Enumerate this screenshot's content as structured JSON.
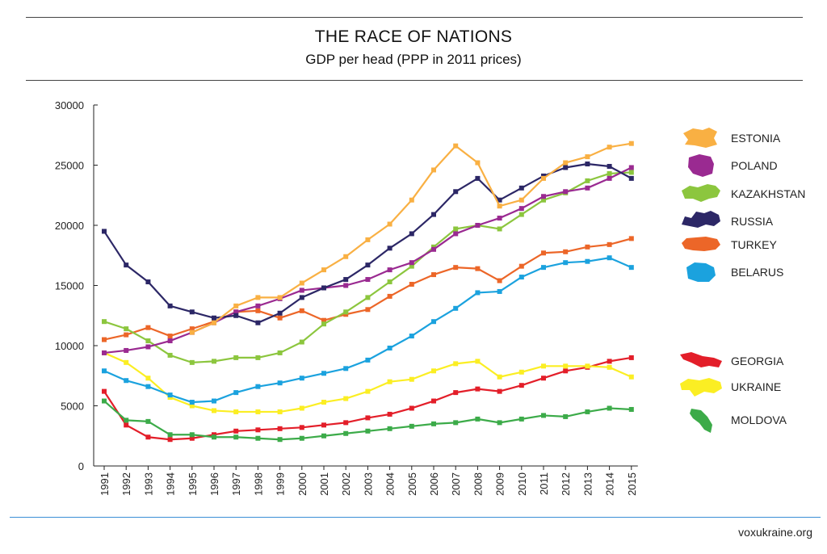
{
  "header": {
    "title": "THE RACE OF NATIONS",
    "subtitle": "GDP per head (PPP in 2011 prices)"
  },
  "footer": {
    "source": "voxukraine.org"
  },
  "chart_data": {
    "type": "line",
    "title": "THE RACE OF NATIONS",
    "subtitle": "GDP per head (PPP in 2011 prices)",
    "xlabel": "",
    "ylabel": "",
    "ylim": [
      0,
      30000
    ],
    "yticks": [
      "0",
      "5000",
      "10000",
      "15000",
      "20000",
      "25000",
      "30000"
    ],
    "grid": false,
    "legend_position": "right",
    "x": [
      "1991",
      "1992",
      "1993",
      "1994",
      "1995",
      "1996",
      "1997",
      "1998",
      "1999",
      "2000",
      "2001",
      "2002",
      "2003",
      "2004",
      "2005",
      "2006",
      "2007",
      "2008",
      "2009",
      "2010",
      "2011",
      "2012",
      "2013",
      "2014",
      "2015"
    ],
    "series": [
      {
        "name": "ESTONIA",
        "color": "#f9b043",
        "values": [
          null,
          null,
          null,
          null,
          11100,
          11900,
          13300,
          14000,
          14000,
          15200,
          16300,
          17400,
          18800,
          20100,
          22100,
          24600,
          26600,
          25200,
          21600,
          22100,
          23900,
          25200,
          25700,
          26500,
          26800
        ]
      },
      {
        "name": "POLAND",
        "color": "#9a2a91",
        "values": [
          9400,
          9600,
          9900,
          10400,
          11100,
          11900,
          12800,
          13300,
          13900,
          14600,
          14800,
          15000,
          15500,
          16300,
          16900,
          18000,
          19300,
          20000,
          20600,
          21400,
          22400,
          22800,
          23100,
          23900,
          24800
        ]
      },
      {
        "name": "KAZAKHSTAN",
        "color": "#8cc63e",
        "values": [
          12000,
          11400,
          10400,
          9200,
          8600,
          8700,
          9000,
          9000,
          9400,
          10300,
          11800,
          12800,
          14000,
          15300,
          16600,
          18200,
          19700,
          20000,
          19700,
          20900,
          22100,
          22700,
          23700,
          24300,
          24400
        ]
      },
      {
        "name": "RUSSIA",
        "color": "#2c2766",
        "values": [
          19500,
          16700,
          15300,
          13300,
          12800,
          12300,
          12500,
          11900,
          12700,
          14000,
          14800,
          15500,
          16700,
          18100,
          19300,
          20900,
          22800,
          23900,
          22100,
          23100,
          24100,
          24800,
          25100,
          24900,
          23900
        ]
      },
      {
        "name": "TURKEY",
        "color": "#ec6628",
        "values": [
          10500,
          10900,
          11500,
          10800,
          11400,
          12000,
          12800,
          12900,
          12300,
          12900,
          12100,
          12600,
          13000,
          14100,
          15100,
          15900,
          16500,
          16400,
          15400,
          16600,
          17700,
          17800,
          18200,
          18400,
          18900
        ]
      },
      {
        "name": "BELARUS",
        "color": "#1ba2de",
        "values": [
          7900,
          7100,
          6600,
          5900,
          5300,
          5400,
          6100,
          6600,
          6900,
          7300,
          7700,
          8100,
          8800,
          9800,
          10800,
          12000,
          13100,
          14400,
          14500,
          15700,
          16500,
          16900,
          17000,
          17300,
          16500
        ]
      },
      {
        "name": "GEORGIA",
        "color": "#e31e29",
        "values": [
          6200,
          3400,
          2400,
          2200,
          2300,
          2600,
          2900,
          3000,
          3100,
          3200,
          3400,
          3600,
          4000,
          4300,
          4800,
          5400,
          6100,
          6400,
          6200,
          6700,
          7300,
          7900,
          8200,
          8700,
          9000
        ]
      },
      {
        "name": "UKRAINE",
        "color": "#fbee23",
        "values": [
          9400,
          8600,
          7300,
          5700,
          5000,
          4600,
          4500,
          4500,
          4500,
          4800,
          5300,
          5600,
          6200,
          7000,
          7200,
          7900,
          8500,
          8700,
          7400,
          7800,
          8300,
          8300,
          8300,
          8200,
          7400
        ]
      },
      {
        "name": "MOLDOVA",
        "color": "#3cab49",
        "values": [
          5400,
          3800,
          3700,
          2600,
          2600,
          2400,
          2400,
          2300,
          2200,
          2300,
          2500,
          2700,
          2900,
          3100,
          3300,
          3500,
          3600,
          3900,
          3600,
          3900,
          4200,
          4100,
          4500,
          4800,
          4700
        ]
      }
    ]
  }
}
